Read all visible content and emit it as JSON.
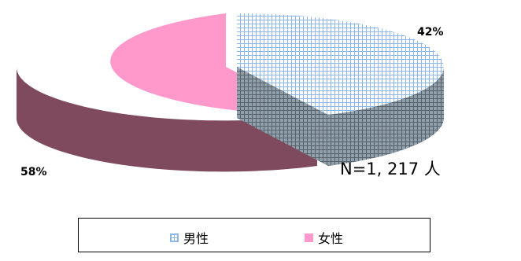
{
  "chart_data": {
    "type": "pie",
    "style": "3d-exploded",
    "slices": [
      {
        "name": "男性",
        "value": 42,
        "label": "42%",
        "color": "#8fb6e8",
        "pattern": "grid",
        "side_color": "#7d8d96"
      },
      {
        "name": "女性",
        "value": 58,
        "label": "58%",
        "color": "#ff99cc",
        "side_color": "#7f4a5e"
      }
    ],
    "annotation": "N=1, 217 人",
    "legend_position": "bottom"
  }
}
